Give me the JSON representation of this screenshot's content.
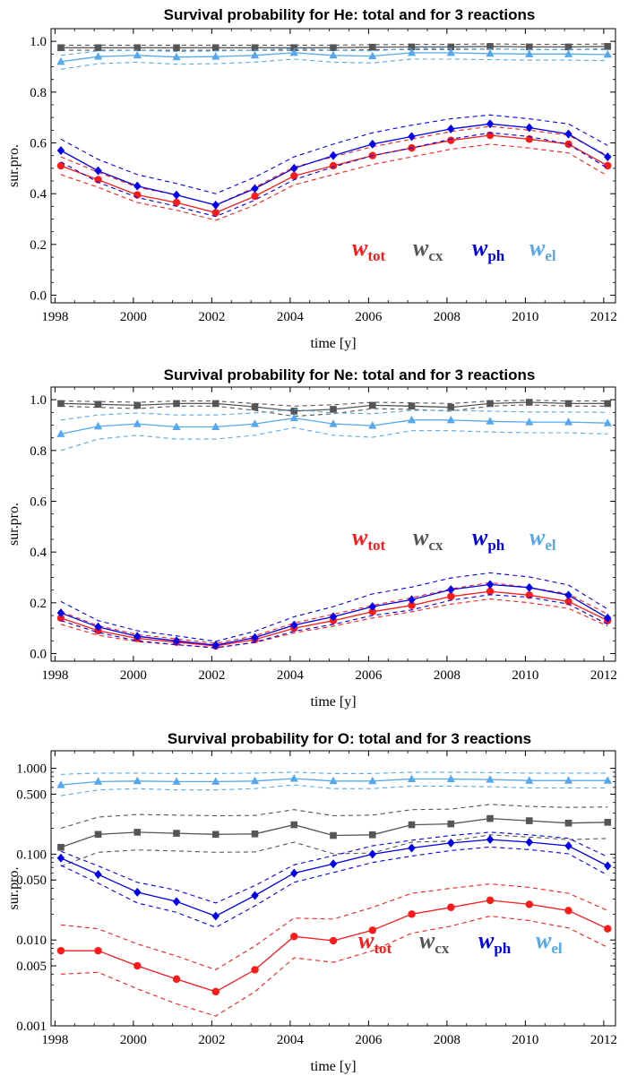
{
  "colors": {
    "tot": "#ff1a1a",
    "cx": "#555555",
    "ph": "#0000ee",
    "el": "#55a8ee"
  },
  "chart_data": [
    {
      "type": "line",
      "title": "Survival probability for He: total and for 3 reactions",
      "xlabel": "time [y]",
      "ylabel": "sur.pro.",
      "yscale": "linear",
      "xlim": [
        1997.9,
        2012.3
      ],
      "ylim": [
        -0.03,
        1.05
      ],
      "xticks": [
        1998,
        2000,
        2002,
        2004,
        2006,
        2008,
        2010,
        2012
      ],
      "yticks": [
        "0.0",
        "0.2",
        "0.4",
        "0.6",
        "0.8",
        "1.0"
      ],
      "x": [
        1998.15,
        1999.1,
        2000.1,
        2001.1,
        2002.1,
        2003.1,
        2004.1,
        2005.1,
        2006.1,
        2007.1,
        2008.1,
        2009.1,
        2010.1,
        2011.1,
        2012.1
      ],
      "legend": [
        {
          "key": "tot",
          "main": "w",
          "sub": "tot"
        },
        {
          "key": "cx",
          "main": "w",
          "sub": "cx"
        },
        {
          "key": "ph",
          "main": "w",
          "sub": "ph"
        },
        {
          "key": "el",
          "main": "w",
          "sub": "el"
        }
      ],
      "series": [
        {
          "key": "tot",
          "marker": "circle",
          "values": [
            0.51,
            0.455,
            0.395,
            0.365,
            0.325,
            0.39,
            0.47,
            0.51,
            0.55,
            0.58,
            0.61,
            0.63,
            0.615,
            0.595,
            0.51
          ],
          "upper": [
            0.545,
            0.485,
            0.425,
            0.395,
            0.355,
            0.425,
            0.505,
            0.545,
            0.585,
            0.615,
            0.645,
            0.665,
            0.65,
            0.63,
            0.55
          ],
          "lower": [
            0.475,
            0.425,
            0.365,
            0.335,
            0.295,
            0.355,
            0.435,
            0.475,
            0.515,
            0.545,
            0.575,
            0.595,
            0.58,
            0.56,
            0.47
          ]
        },
        {
          "key": "cx",
          "marker": "square",
          "values": [
            0.975,
            0.975,
            0.975,
            0.975,
            0.975,
            0.975,
            0.975,
            0.975,
            0.977,
            0.978,
            0.978,
            0.98,
            0.978,
            0.978,
            0.98
          ],
          "upper": [
            0.985,
            0.985,
            0.985,
            0.985,
            0.985,
            0.985,
            0.985,
            0.985,
            0.987,
            0.988,
            0.988,
            0.99,
            0.988,
            0.988,
            0.99
          ],
          "lower": [
            0.965,
            0.965,
            0.965,
            0.965,
            0.965,
            0.965,
            0.965,
            0.965,
            0.967,
            0.968,
            0.968,
            0.97,
            0.968,
            0.968,
            0.97
          ]
        },
        {
          "key": "ph",
          "marker": "diamond",
          "values": [
            0.57,
            0.49,
            0.43,
            0.395,
            0.355,
            0.42,
            0.5,
            0.55,
            0.595,
            0.625,
            0.655,
            0.675,
            0.66,
            0.635,
            0.545
          ],
          "upper": [
            0.615,
            0.535,
            0.475,
            0.44,
            0.4,
            0.465,
            0.545,
            0.595,
            0.64,
            0.67,
            0.695,
            0.71,
            0.695,
            0.675,
            0.59
          ],
          "lower": [
            0.525,
            0.445,
            0.385,
            0.35,
            0.31,
            0.375,
            0.455,
            0.505,
            0.55,
            0.58,
            0.615,
            0.64,
            0.625,
            0.595,
            0.5
          ]
        },
        {
          "key": "el",
          "marker": "triangle",
          "values": [
            0.92,
            0.94,
            0.945,
            0.938,
            0.94,
            0.945,
            0.955,
            0.945,
            0.942,
            0.955,
            0.955,
            0.952,
            0.95,
            0.95,
            0.948
          ],
          "upper": [
            0.945,
            0.962,
            0.965,
            0.96,
            0.962,
            0.965,
            0.972,
            0.965,
            0.962,
            0.972,
            0.972,
            0.97,
            0.968,
            0.968,
            0.967
          ],
          "lower": [
            0.89,
            0.912,
            0.918,
            0.91,
            0.912,
            0.918,
            0.93,
            0.918,
            0.915,
            0.93,
            0.93,
            0.928,
            0.926,
            0.926,
            0.924
          ]
        }
      ]
    },
    {
      "type": "line",
      "title": "Survival probability for Ne: total and for 3 reactions",
      "xlabel": "time [y]",
      "ylabel": "sur.pro.",
      "yscale": "linear",
      "xlim": [
        1997.9,
        2012.3
      ],
      "ylim": [
        -0.03,
        1.05
      ],
      "xticks": [
        1998,
        2000,
        2002,
        2004,
        2006,
        2008,
        2010,
        2012
      ],
      "yticks": [
        "0.0",
        "0.2",
        "0.4",
        "0.6",
        "0.8",
        "1.0"
      ],
      "x": [
        1998.15,
        1999.1,
        2000.1,
        2001.1,
        2002.1,
        2003.1,
        2004.1,
        2005.1,
        2006.1,
        2007.1,
        2008.1,
        2009.1,
        2010.1,
        2011.1,
        2012.1
      ],
      "legend": [
        {
          "key": "tot",
          "main": "w",
          "sub": "tot"
        },
        {
          "key": "cx",
          "main": "w",
          "sub": "cx"
        },
        {
          "key": "ph",
          "main": "w",
          "sub": "ph"
        },
        {
          "key": "el",
          "main": "w",
          "sub": "el"
        }
      ],
      "series": [
        {
          "key": "tot",
          "marker": "circle",
          "values": [
            0.14,
            0.09,
            0.06,
            0.045,
            0.03,
            0.055,
            0.1,
            0.13,
            0.165,
            0.19,
            0.225,
            0.245,
            0.23,
            0.205,
            0.13
          ],
          "upper": [
            0.165,
            0.11,
            0.075,
            0.058,
            0.04,
            0.07,
            0.12,
            0.155,
            0.19,
            0.22,
            0.255,
            0.28,
            0.26,
            0.235,
            0.155
          ],
          "lower": [
            0.115,
            0.072,
            0.047,
            0.035,
            0.024,
            0.043,
            0.082,
            0.108,
            0.14,
            0.165,
            0.195,
            0.215,
            0.2,
            0.178,
            0.108
          ]
        },
        {
          "key": "cx",
          "marker": "square",
          "values": [
            0.985,
            0.982,
            0.978,
            0.985,
            0.985,
            0.972,
            0.955,
            0.962,
            0.978,
            0.975,
            0.97,
            0.985,
            0.99,
            0.985,
            0.985
          ],
          "upper": [
            0.995,
            0.993,
            0.99,
            0.995,
            0.995,
            0.985,
            0.975,
            0.98,
            0.99,
            0.988,
            0.985,
            0.995,
            0.998,
            0.995,
            0.995
          ],
          "lower": [
            0.975,
            0.97,
            0.965,
            0.975,
            0.975,
            0.958,
            0.935,
            0.945,
            0.965,
            0.962,
            0.955,
            0.975,
            0.98,
            0.975,
            0.975
          ]
        },
        {
          "key": "ph",
          "marker": "diamond",
          "values": [
            0.16,
            0.105,
            0.068,
            0.05,
            0.033,
            0.063,
            0.112,
            0.145,
            0.185,
            0.212,
            0.252,
            0.272,
            0.26,
            0.23,
            0.14
          ],
          "upper": [
            0.205,
            0.13,
            0.09,
            0.07,
            0.048,
            0.088,
            0.145,
            0.185,
            0.235,
            0.262,
            0.298,
            0.318,
            0.302,
            0.27,
            0.175
          ],
          "lower": [
            0.13,
            0.083,
            0.05,
            0.035,
            0.022,
            0.045,
            0.088,
            0.115,
            0.15,
            0.172,
            0.21,
            0.232,
            0.222,
            0.195,
            0.115
          ]
        },
        {
          "key": "el",
          "marker": "triangle",
          "values": [
            0.865,
            0.895,
            0.905,
            0.893,
            0.893,
            0.905,
            0.928,
            0.905,
            0.898,
            0.92,
            0.92,
            0.915,
            0.912,
            0.912,
            0.908
          ],
          "upper": [
            0.92,
            0.94,
            0.948,
            0.94,
            0.94,
            0.948,
            0.962,
            0.948,
            0.945,
            0.958,
            0.958,
            0.955,
            0.952,
            0.952,
            0.95
          ],
          "lower": [
            0.8,
            0.845,
            0.86,
            0.845,
            0.845,
            0.86,
            0.89,
            0.86,
            0.852,
            0.878,
            0.878,
            0.873,
            0.87,
            0.87,
            0.865
          ]
        }
      ]
    },
    {
      "type": "line",
      "title": "Survival probability for O: total and for 3 reactions",
      "xlabel": "time [y]",
      "ylabel": "sur.pro.",
      "yscale": "log",
      "xlim": [
        1997.9,
        2012.3
      ],
      "ylim": [
        0.001,
        1.6
      ],
      "xticks": [
        1998,
        2000,
        2002,
        2004,
        2006,
        2008,
        2010,
        2012
      ],
      "yticks": [
        "0.001",
        "0.005",
        "0.010",
        "0.050",
        "0.100",
        "0.500",
        "1.000"
      ],
      "x": [
        1998.15,
        1999.1,
        2000.1,
        2001.1,
        2002.1,
        2003.1,
        2004.1,
        2005.1,
        2006.1,
        2007.1,
        2008.1,
        2009.1,
        2010.1,
        2011.1,
        2012.1
      ],
      "legend": [
        {
          "key": "tot",
          "main": "w",
          "sub": "tot"
        },
        {
          "key": "cx",
          "main": "w",
          "sub": "cx"
        },
        {
          "key": "ph",
          "main": "w",
          "sub": "ph"
        },
        {
          "key": "el",
          "main": "w",
          "sub": "el"
        }
      ],
      "series": [
        {
          "key": "tot",
          "marker": "circle",
          "values": [
            0.0075,
            0.0075,
            0.005,
            0.0035,
            0.0025,
            0.0045,
            0.011,
            0.0098,
            0.013,
            0.02,
            0.024,
            0.029,
            0.026,
            0.022,
            0.0135
          ],
          "upper": [
            0.015,
            0.0135,
            0.009,
            0.0065,
            0.0045,
            0.0085,
            0.018,
            0.0175,
            0.024,
            0.035,
            0.04,
            0.045,
            0.041,
            0.035,
            0.022
          ],
          "lower": [
            0.004,
            0.0042,
            0.0027,
            0.0018,
            0.0013,
            0.0025,
            0.0062,
            0.0055,
            0.0075,
            0.012,
            0.0145,
            0.019,
            0.0168,
            0.0138,
            0.0082
          ]
        },
        {
          "key": "cx",
          "marker": "square",
          "values": [
            0.12,
            0.17,
            0.18,
            0.175,
            0.17,
            0.172,
            0.22,
            0.165,
            0.168,
            0.22,
            0.225,
            0.26,
            0.245,
            0.23,
            0.235
          ],
          "upper": [
            0.2,
            0.27,
            0.29,
            0.285,
            0.28,
            0.282,
            0.33,
            0.28,
            0.285,
            0.33,
            0.335,
            0.38,
            0.36,
            0.35,
            0.355
          ],
          "lower": [
            0.072,
            0.105,
            0.112,
            0.109,
            0.105,
            0.106,
            0.138,
            0.101,
            0.103,
            0.138,
            0.142,
            0.168,
            0.158,
            0.148,
            0.152
          ]
        },
        {
          "key": "ph",
          "marker": "diamond",
          "values": [
            0.09,
            0.058,
            0.036,
            0.028,
            0.019,
            0.033,
            0.06,
            0.077,
            0.1,
            0.118,
            0.135,
            0.148,
            0.138,
            0.125,
            0.073
          ],
          "upper": [
            0.108,
            0.073,
            0.047,
            0.038,
            0.027,
            0.043,
            0.075,
            0.096,
            0.125,
            0.145,
            0.165,
            0.18,
            0.168,
            0.153,
            0.093
          ],
          "lower": [
            0.074,
            0.046,
            0.027,
            0.021,
            0.014,
            0.025,
            0.047,
            0.061,
            0.08,
            0.095,
            0.11,
            0.121,
            0.113,
            0.101,
            0.057
          ]
        },
        {
          "key": "el",
          "marker": "triangle",
          "values": [
            0.64,
            0.7,
            0.71,
            0.7,
            0.7,
            0.71,
            0.76,
            0.71,
            0.71,
            0.75,
            0.75,
            0.74,
            0.72,
            0.72,
            0.72
          ],
          "upper": [
            0.85,
            0.88,
            0.88,
            0.87,
            0.87,
            0.88,
            0.9,
            0.87,
            0.87,
            0.9,
            0.9,
            0.89,
            0.88,
            0.88,
            0.88
          ],
          "lower": [
            0.48,
            0.56,
            0.58,
            0.56,
            0.56,
            0.58,
            0.64,
            0.58,
            0.58,
            0.62,
            0.62,
            0.61,
            0.59,
            0.59,
            0.59
          ]
        }
      ]
    }
  ]
}
